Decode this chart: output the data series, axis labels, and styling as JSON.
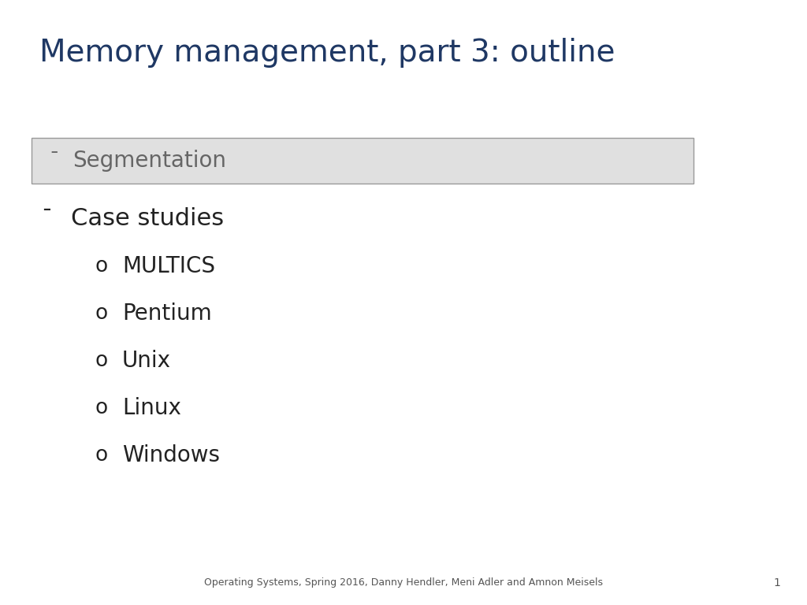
{
  "title": "Memory management, part 3: outline",
  "title_color": "#1F3864",
  "title_fontsize": 28,
  "background_color": "#ffffff",
  "segmentation_bullet": "ˉ",
  "segmentation_text": "Segmentation",
  "segmentation_box_color": "#E0E0E0",
  "segmentation_box_edge_color": "#999999",
  "segmentation_text_color": "#666666",
  "segmentation_fontsize": 20,
  "level1_bullet": "ˉ",
  "level1_items": [
    "Case studies"
  ],
  "level1_fontsize": 22,
  "level1_text_color": "#222222",
  "level2_bullet": "o",
  "level2_items": [
    "MULTICS",
    "Pentium",
    "Unix",
    "Linux",
    "Windows"
  ],
  "level2_fontsize": 20,
  "level2_text_color": "#222222",
  "footer_text": "Operating Systems, Spring 2016, Danny Hendler, Meni Adler and Amnon Meisels",
  "footer_fontsize": 9,
  "footer_color": "#555555",
  "page_number": "1",
  "page_number_fontsize": 10,
  "page_number_color": "#555555"
}
